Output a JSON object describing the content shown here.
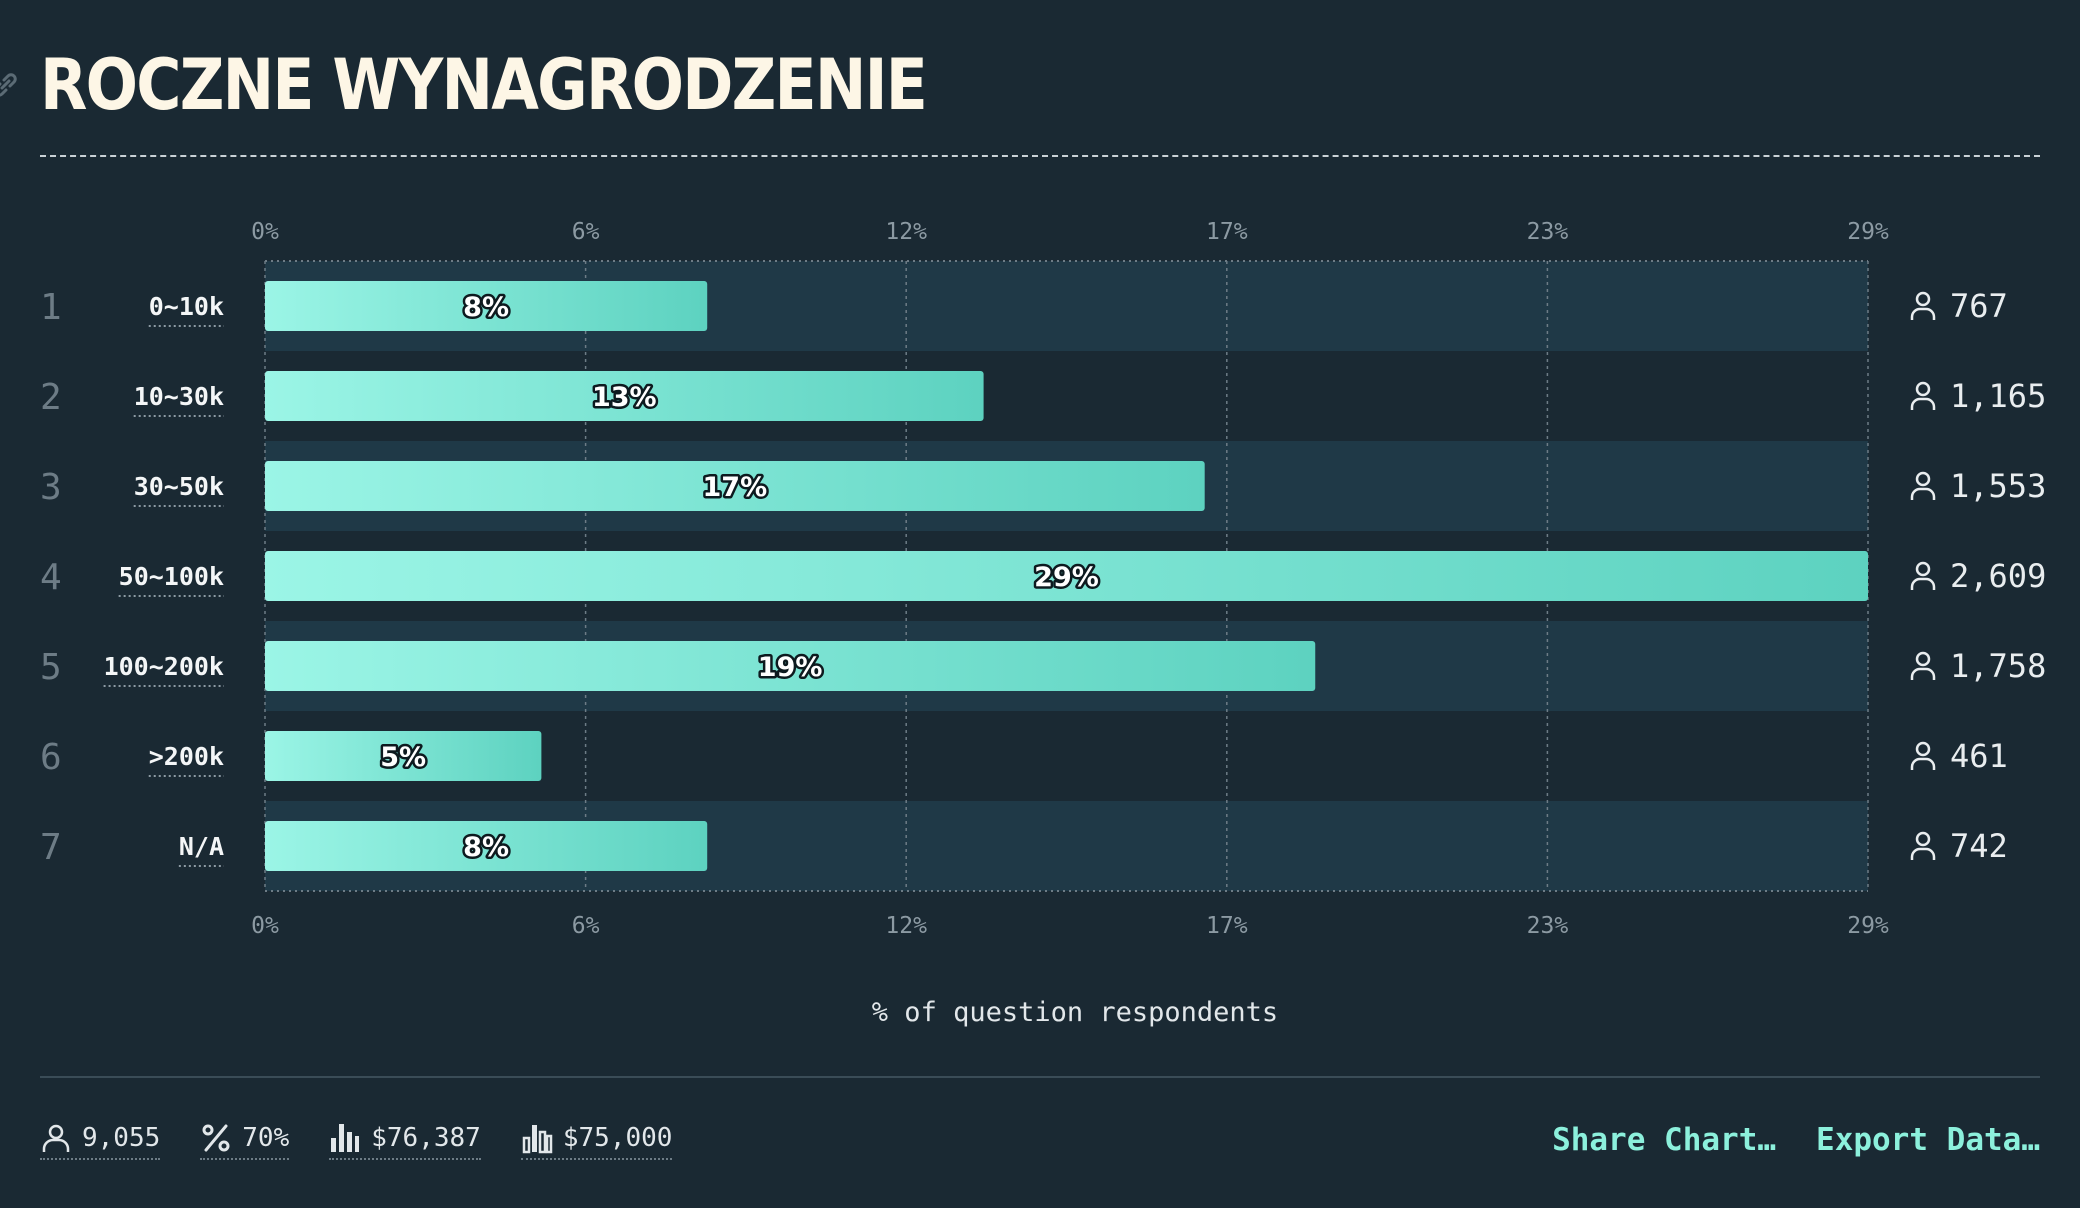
{
  "chart_data": {
    "type": "bar",
    "orientation": "horizontal",
    "title": "ROCZNE WYNAGRODZENIE",
    "xlabel": "% of question respondents",
    "ylabel": "",
    "xlim": [
      0,
      29
    ],
    "x_ticks": [
      "0%",
      "6%",
      "12%",
      "17%",
      "23%",
      "29%"
    ],
    "grid": true,
    "categories": [
      "0~10k",
      "10~30k",
      "30~50k",
      "50~100k",
      "100~200k",
      ">200k",
      "N/A"
    ],
    "ranks": [
      "1",
      "2",
      "3",
      "4",
      "5",
      "6",
      "7"
    ],
    "values": [
      8,
      13,
      17,
      29,
      19,
      5,
      8
    ],
    "value_labels": [
      "8%",
      "13%",
      "17%",
      "29%",
      "19%",
      "5%",
      "8%"
    ],
    "counts": [
      "767",
      "1,165",
      "1,553",
      "2,609",
      "1,758",
      "461",
      "742"
    ]
  },
  "stats": {
    "respondents": "9,055",
    "percent": "70%",
    "mean": "$76,387",
    "median": "$75,000"
  },
  "actions": {
    "share": "Share Chart…",
    "export": "Export Data…"
  },
  "colors": {
    "background": "#1a2933",
    "band": "#1f3947",
    "bar_start": "#9bf5e6",
    "bar_end": "#5dd2c0",
    "accent": "#8cf0dc"
  }
}
